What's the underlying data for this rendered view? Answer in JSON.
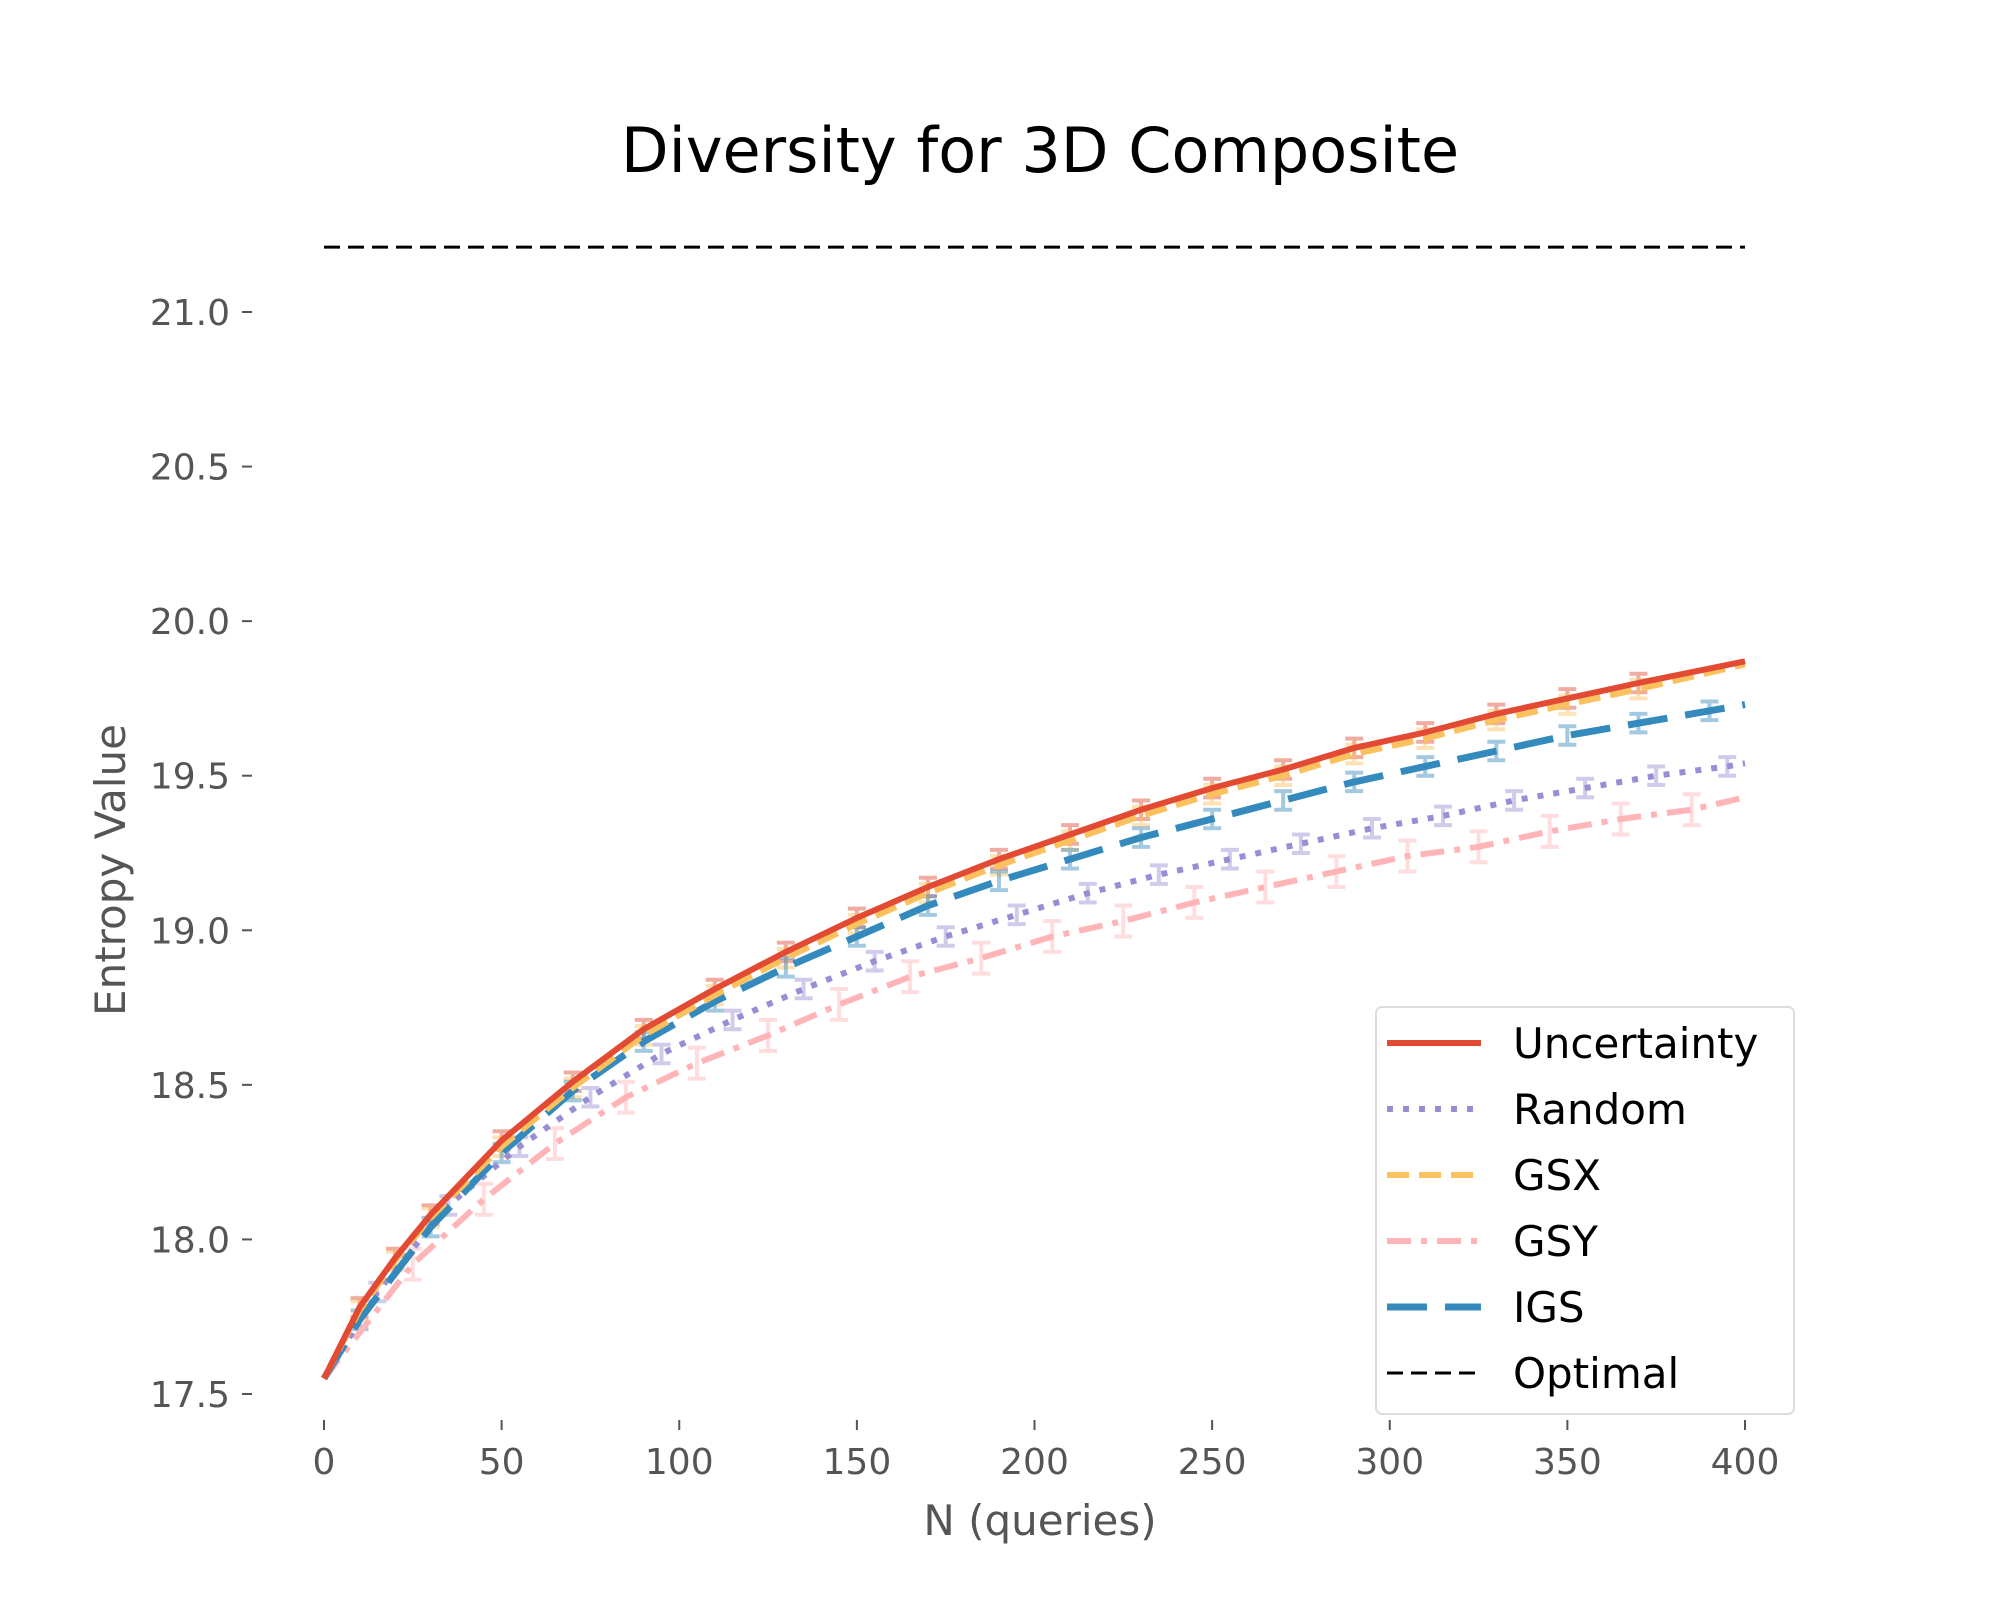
{
  "chart_data": {
    "type": "line",
    "title": "Diversity for 3D Composite",
    "xlabel": "N (queries)",
    "ylabel": "Entropy Value",
    "xlim": [
      0,
      400
    ],
    "ylim": [
      17.5,
      21.0
    ],
    "xticks": [
      0,
      50,
      100,
      150,
      200,
      250,
      300,
      350,
      400
    ],
    "yticks": [
      17.5,
      18.0,
      18.5,
      19.0,
      19.5,
      20.0,
      20.5,
      21.0
    ],
    "ytick_labels": [
      "17.5",
      "18.0",
      "18.5",
      "19.0",
      "19.5",
      "20.0",
      "20.5",
      "21.0"
    ],
    "grid": false,
    "legend_position": "lower-right",
    "series": [
      {
        "name": "Uncertainty",
        "color": "#E24A33",
        "style": "solid",
        "x": [
          0,
          10,
          20,
          30,
          50,
          70,
          90,
          110,
          130,
          150,
          170,
          190,
          210,
          230,
          250,
          270,
          290,
          310,
          330,
          350,
          370,
          400
        ],
        "y": [
          17.55,
          17.78,
          17.94,
          18.08,
          18.32,
          18.51,
          18.68,
          18.81,
          18.93,
          19.04,
          19.14,
          19.23,
          19.31,
          19.39,
          19.46,
          19.52,
          19.59,
          19.64,
          19.7,
          19.75,
          19.8,
          19.87
        ]
      },
      {
        "name": "Random",
        "color": "#988ED5",
        "style": "dotted",
        "x": [
          0,
          15,
          35,
          55,
          75,
          95,
          115,
          135,
          155,
          175,
          195,
          215,
          235,
          255,
          275,
          295,
          315,
          335,
          355,
          375,
          395,
          400
        ],
        "y": [
          17.55,
          17.83,
          18.11,
          18.3,
          18.46,
          18.6,
          18.71,
          18.81,
          18.9,
          18.98,
          19.05,
          19.12,
          19.18,
          19.23,
          19.28,
          19.33,
          19.37,
          19.42,
          19.46,
          19.5,
          19.53,
          19.54
        ]
      },
      {
        "name": "GSX",
        "color": "#FBC15E",
        "style": "dashed",
        "x": [
          0,
          10,
          20,
          30,
          50,
          70,
          90,
          110,
          130,
          150,
          170,
          190,
          210,
          230,
          250,
          270,
          290,
          310,
          330,
          350,
          370,
          400
        ],
        "y": [
          17.55,
          17.77,
          17.93,
          18.07,
          18.3,
          18.49,
          18.66,
          18.79,
          18.91,
          19.02,
          19.12,
          19.21,
          19.29,
          19.37,
          19.44,
          19.5,
          19.57,
          19.62,
          19.68,
          19.73,
          19.78,
          19.86
        ]
      },
      {
        "name": "GSY",
        "color": "#FFB5B8",
        "style": "dashdot",
        "x": [
          0,
          25,
          45,
          65,
          85,
          105,
          125,
          145,
          165,
          185,
          205,
          225,
          245,
          265,
          285,
          305,
          325,
          345,
          365,
          385,
          400
        ],
        "y": [
          17.55,
          17.92,
          18.13,
          18.31,
          18.46,
          18.57,
          18.66,
          18.76,
          18.85,
          18.91,
          18.98,
          19.03,
          19.09,
          19.14,
          19.19,
          19.24,
          19.27,
          19.32,
          19.36,
          19.39,
          19.43
        ]
      },
      {
        "name": "IGS",
        "color": "#348ABD",
        "style": "longdash",
        "x": [
          0,
          10,
          30,
          50,
          70,
          90,
          110,
          130,
          150,
          170,
          190,
          210,
          230,
          250,
          270,
          290,
          310,
          330,
          350,
          370,
          390,
          400
        ],
        "y": [
          17.55,
          17.74,
          18.04,
          18.28,
          18.48,
          18.64,
          18.77,
          18.88,
          18.98,
          19.08,
          19.16,
          19.23,
          19.3,
          19.36,
          19.42,
          19.48,
          19.53,
          19.58,
          19.63,
          19.67,
          19.71,
          19.73
        ]
      },
      {
        "name": "Optimal",
        "color": "#000000",
        "style": "dashed-thin",
        "x": [
          0,
          400
        ],
        "y": [
          21.21,
          21.21
        ]
      }
    ]
  }
}
